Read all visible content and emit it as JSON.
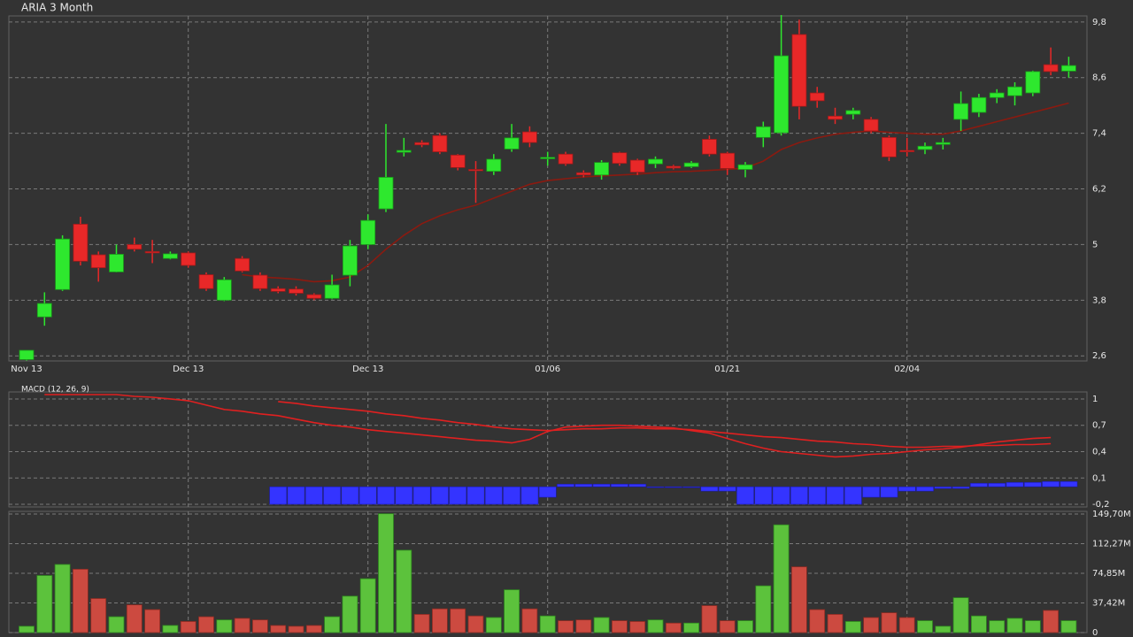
{
  "chart_data": [
    {
      "type": "candlestick",
      "title": "ARIA 3 Month",
      "categories": [
        "Nov 13",
        null,
        null,
        null,
        null,
        null,
        null,
        null,
        null,
        "Dec 13",
        null,
        null,
        null,
        null,
        null,
        null,
        null,
        null,
        null,
        "Dec 13",
        null,
        null,
        null,
        null,
        null,
        null,
        null,
        null,
        null,
        "01/06",
        null,
        null,
        null,
        null,
        null,
        null,
        null,
        null,
        null,
        "01/21",
        null,
        null,
        null,
        null,
        null,
        null,
        null,
        null,
        null,
        "02/04",
        null,
        null,
        null,
        null,
        null,
        null,
        null,
        null,
        null
      ],
      "open": [
        2.52,
        3.44,
        4.03,
        5.44,
        4.78,
        4.41,
        5.0,
        4.85,
        4.7,
        4.82,
        4.35,
        3.8,
        4.7,
        4.34,
        4.05,
        4.04,
        3.92,
        3.84,
        4.34,
        5.0,
        5.77,
        6.99,
        7.2,
        7.35,
        6.93,
        6.62,
        6.58,
        7.06,
        7.43,
        6.85,
        6.95,
        6.55,
        6.5,
        6.98,
        6.82,
        6.74,
        6.69,
        6.68,
        7.27,
        6.97,
        6.62,
        7.31,
        7.41,
        9.53,
        8.27,
        7.77,
        7.81,
        7.7,
        7.31,
        7.03,
        7.05,
        7.16,
        7.7,
        7.85,
        8.17,
        8.21,
        8.27,
        8.88,
        8.74
      ],
      "high": [
        2.72,
        3.97,
        5.2,
        5.6,
        4.85,
        5.0,
        5.15,
        5.1,
        4.85,
        4.85,
        4.4,
        4.3,
        4.75,
        4.4,
        4.1,
        4.1,
        3.95,
        4.35,
        5.1,
        5.65,
        7.6,
        7.3,
        7.25,
        7.4,
        6.95,
        6.8,
        6.95,
        7.6,
        7.55,
        7.0,
        7.0,
        6.6,
        6.82,
        7.0,
        6.85,
        6.9,
        6.72,
        6.8,
        7.35,
        7.0,
        6.78,
        7.65,
        9.95,
        9.85,
        8.4,
        7.95,
        7.95,
        7.75,
        7.35,
        7.3,
        7.2,
        7.3,
        8.3,
        8.25,
        8.35,
        8.5,
        8.75,
        9.25,
        9.05
      ],
      "low": [
        2.5,
        3.25,
        4.0,
        4.55,
        4.2,
        4.4,
        4.85,
        4.6,
        4.68,
        4.5,
        4.0,
        3.78,
        4.4,
        4.0,
        3.95,
        3.9,
        3.8,
        3.82,
        4.1,
        4.9,
        5.7,
        6.9,
        7.1,
        6.95,
        6.6,
        5.9,
        6.5,
        7.0,
        7.1,
        6.7,
        6.7,
        6.45,
        6.4,
        6.7,
        6.5,
        6.65,
        6.62,
        6.65,
        6.9,
        6.5,
        6.45,
        7.1,
        7.35,
        7.7,
        7.95,
        7.6,
        7.7,
        7.4,
        6.8,
        6.9,
        6.95,
        7.05,
        7.45,
        7.75,
        8.05,
        8.0,
        8.2,
        8.65,
        8.6
      ],
      "close": [
        2.72,
        3.73,
        5.12,
        4.64,
        4.5,
        4.79,
        4.9,
        4.82,
        4.8,
        4.55,
        4.05,
        4.24,
        4.43,
        4.05,
        3.99,
        3.95,
        3.84,
        4.13,
        4.97,
        5.52,
        6.45,
        7.03,
        7.15,
        7.0,
        6.66,
        6.6,
        6.84,
        7.3,
        7.2,
        6.88,
        6.74,
        6.5,
        6.77,
        6.75,
        6.56,
        6.84,
        6.65,
        6.76,
        6.95,
        6.64,
        6.72,
        7.54,
        9.07,
        7.98,
        8.1,
        7.7,
        7.89,
        7.45,
        6.89,
        7.0,
        7.12,
        7.2,
        8.04,
        8.17,
        8.27,
        8.4,
        8.73,
        8.73,
        8.86
      ],
      "up_color": "#2ee82e",
      "down_color": "#e82828",
      "ma": {
        "color": "#8b1a10",
        "values": [
          null,
          null,
          null,
          null,
          null,
          null,
          null,
          null,
          null,
          null,
          null,
          null,
          4.35,
          4.3,
          4.28,
          4.25,
          4.2,
          4.22,
          4.3,
          4.55,
          4.9,
          5.2,
          5.45,
          5.62,
          5.75,
          5.85,
          6.0,
          6.15,
          6.3,
          6.38,
          6.42,
          6.46,
          6.48,
          6.5,
          6.52,
          6.55,
          6.57,
          6.58,
          6.6,
          6.62,
          6.65,
          6.8,
          7.05,
          7.2,
          7.3,
          7.38,
          7.42,
          7.45,
          7.42,
          7.4,
          7.38,
          7.38,
          7.45,
          7.55,
          7.65,
          7.75,
          7.85,
          7.95,
          8.05
        ]
      },
      "ylim": [
        2.49,
        9.93
      ],
      "yticks": [
        {
          "value": 2.6,
          "label": "2,6"
        },
        {
          "value": 3.8,
          "label": "3,8"
        },
        {
          "value": 5,
          "label": "5"
        },
        {
          "value": 6.2,
          "label": "6,2"
        },
        {
          "value": 7.4,
          "label": "7,4"
        },
        {
          "value": 8.6,
          "label": "8,6"
        },
        {
          "value": 9.8,
          "label": "9,8"
        }
      ],
      "grid": true
    },
    {
      "type": "macd",
      "title": "MACD (12, 26, 9)",
      "lines": [
        {
          "color": "#e02020",
          "values": [
            null,
            1.05,
            1.05,
            1.05,
            1.05,
            1.05,
            1.03,
            1.02,
            1.0,
            0.98,
            0.93,
            0.88,
            0.86,
            0.83,
            0.81,
            0.77,
            0.73,
            0.7,
            0.68,
            0.65,
            0.63,
            0.61,
            0.59,
            0.57,
            0.55,
            0.53,
            0.52,
            0.5,
            0.54,
            0.63,
            0.68,
            0.69,
            0.7,
            0.7,
            0.69,
            0.68,
            0.67,
            0.64,
            0.61,
            0.55,
            0.49,
            0.44,
            0.4,
            0.38,
            0.36,
            0.34,
            0.35,
            0.37,
            0.38,
            0.4,
            0.42,
            0.43,
            0.45,
            0.48,
            0.51,
            0.53,
            0.55,
            0.56,
            null
          ]
        },
        {
          "color": "#e02020",
          "values": [
            null,
            null,
            null,
            null,
            null,
            null,
            null,
            null,
            null,
            null,
            null,
            null,
            null,
            null,
            0.97,
            0.95,
            0.92,
            0.9,
            0.88,
            0.86,
            0.83,
            0.81,
            0.78,
            0.76,
            0.73,
            0.71,
            0.68,
            0.66,
            0.65,
            0.64,
            0.65,
            0.66,
            0.66,
            0.67,
            0.67,
            0.66,
            0.66,
            0.65,
            0.63,
            0.61,
            0.59,
            0.57,
            0.56,
            0.54,
            0.52,
            0.51,
            0.49,
            0.48,
            0.46,
            0.45,
            0.45,
            0.46,
            0.46,
            0.47,
            0.47,
            0.48,
            0.48,
            0.49,
            null
          ]
        }
      ],
      "histogram": {
        "color": "#3434ff",
        "values": [
          null,
          null,
          null,
          null,
          null,
          null,
          null,
          null,
          null,
          null,
          null,
          null,
          null,
          null,
          -0.2,
          -0.2,
          -0.2,
          -0.2,
          -0.2,
          -0.2,
          -0.2,
          -0.2,
          -0.2,
          -0.2,
          -0.2,
          -0.2,
          -0.2,
          -0.2,
          -0.2,
          -0.12,
          0.03,
          0.03,
          0.03,
          0.03,
          0.03,
          -0.01,
          -0.01,
          -0.01,
          -0.05,
          -0.05,
          -0.2,
          -0.2,
          -0.2,
          -0.2,
          -0.2,
          -0.2,
          -0.2,
          -0.12,
          -0.12,
          -0.05,
          -0.05,
          -0.02,
          -0.02,
          0.04,
          0.04,
          0.05,
          0.05,
          0.06,
          0.06
        ]
      },
      "ylim": [
        -0.23,
        1.08
      ],
      "yticks": [
        {
          "value": -0.2,
          "label": "-0,2"
        },
        {
          "value": 0.1,
          "label": "0,1"
        },
        {
          "value": 0.4,
          "label": "0,4"
        },
        {
          "value": 0.7,
          "label": "0,7"
        },
        1
      ],
      "grid": true
    },
    {
      "type": "volume",
      "values": [
        8,
        72,
        86,
        80,
        43,
        20,
        35,
        29,
        9,
        14,
        20,
        16,
        18,
        16,
        9,
        8,
        9,
        20,
        46,
        68,
        150,
        104,
        23,
        30,
        30,
        21,
        19,
        54,
        30,
        21,
        15,
        16,
        19,
        15,
        14,
        16,
        12,
        12,
        34,
        15,
        15,
        59,
        136,
        83,
        29,
        23,
        14,
        19,
        25,
        19,
        15,
        8,
        44,
        21,
        15,
        18,
        15,
        28,
        15
      ],
      "up_color": "#5cc23c",
      "down_color": "#cc4a40",
      "ylim": [
        0,
        153
      ],
      "yticks": [
        0,
        {
          "value": 37.42,
          "label": "37,42M"
        },
        {
          "value": 74.85,
          "label": "74,85M"
        },
        {
          "value": 112.27,
          "label": "112,27M"
        },
        {
          "value": 149.7,
          "label": "149,70M"
        }
      ],
      "grid": true
    }
  ]
}
